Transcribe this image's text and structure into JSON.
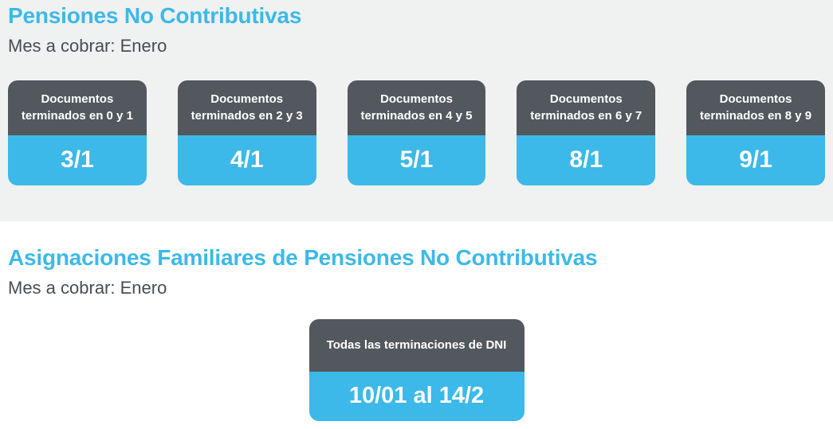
{
  "colors": {
    "accent_cyan": "#3cb9e8",
    "card_header_slate": "#53575e",
    "card_value_cyan": "#3cb9e8",
    "section_background": "#f0f1f1",
    "subtitle_text": "#474d56"
  },
  "sections": [
    {
      "title": "Pensiones No Contributivas",
      "subtitle": "Mes a cobrar: Enero",
      "cards": [
        {
          "header": "Documentos terminados en 0 y 1",
          "value": "3/1"
        },
        {
          "header": "Documentos terminados en 2 y 3",
          "value": "4/1"
        },
        {
          "header": "Documentos terminados en 4 y 5",
          "value": "5/1"
        },
        {
          "header": "Documentos terminados en 6 y 7",
          "value": "8/1"
        },
        {
          "header": "Documentos terminados en 8 y 9",
          "value": "9/1"
        }
      ]
    },
    {
      "title": "Asignaciones Familiares de Pensiones No Contributivas",
      "subtitle": "Mes a cobrar: Enero",
      "cards": [
        {
          "header": "Todas las terminaciones de DNI",
          "value": "10/01 al 14/2"
        }
      ]
    }
  ]
}
